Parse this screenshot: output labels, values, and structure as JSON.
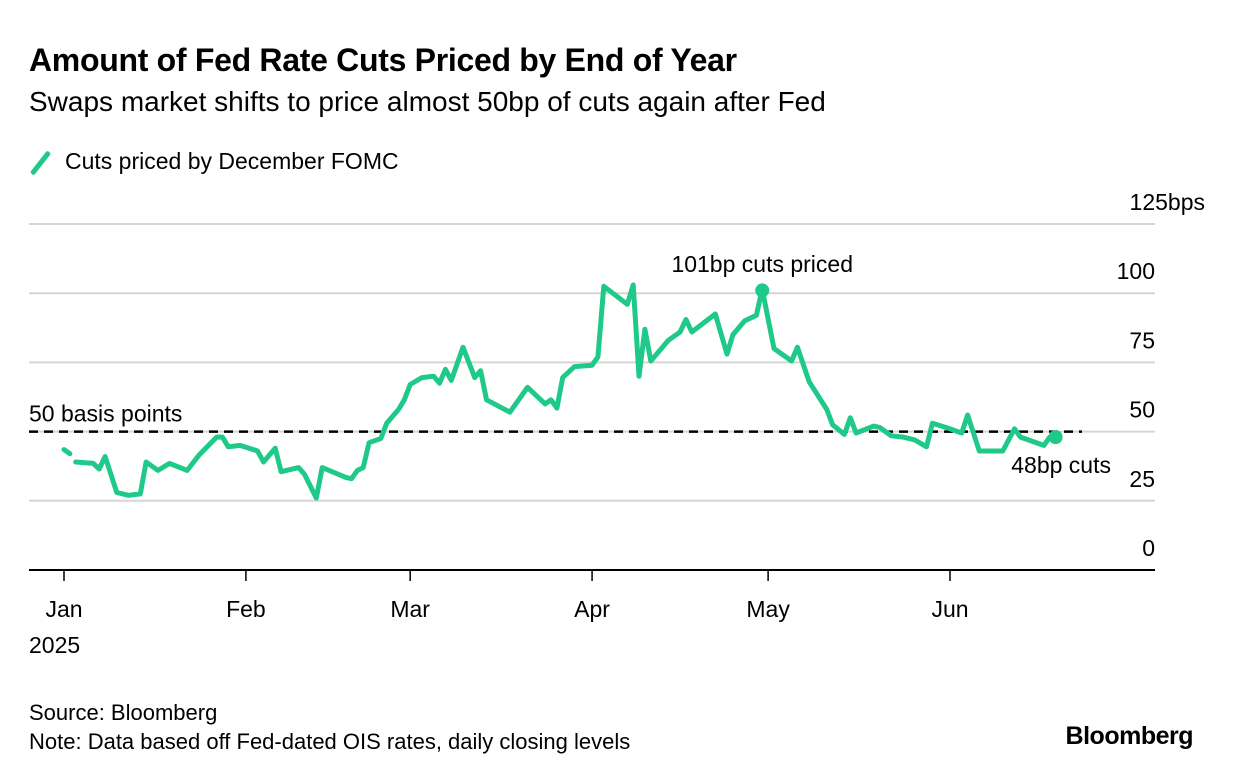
{
  "header": {
    "title": "Amount of Fed Rate Cuts Priced by End of Year",
    "subtitle": "Swaps market shifts to price almost 50bp of cuts again after Fed"
  },
  "legend": {
    "items": [
      {
        "label": "Cuts priced by December FOMC",
        "color": "#1fc98a"
      }
    ]
  },
  "footer": {
    "source": "Source: Bloomberg",
    "note": "Note: Data based off Fed-dated OIS rates, daily closing levels",
    "logo": "Bloomberg"
  },
  "chart_data": {
    "type": "line",
    "title": "Amount of Fed Rate Cuts Priced by End of Year",
    "subtitle": "Swaps market shifts to price almost 50bp of cuts again after Fed",
    "xlabel": "",
    "ylabel": "bps",
    "ylim": [
      0,
      125
    ],
    "yticks": [
      0,
      25,
      50,
      75,
      100,
      125
    ],
    "ytick_labels": [
      "0",
      "25",
      "50",
      "75",
      "100",
      "125bps"
    ],
    "xlim": [
      "2024-12-27",
      "2025-07-22"
    ],
    "xticks": [
      "2025-01-01",
      "2025-02-01",
      "2025-03-01",
      "2025-04-01",
      "2025-05-01",
      "2025-06-01"
    ],
    "xtick_labels": [
      "Jan",
      "Feb",
      "Mar",
      "Apr",
      "May",
      "Jun"
    ],
    "xtick_sublabel": "2025",
    "grid": true,
    "legend_position": "top-left",
    "reference_line": {
      "value": 50,
      "label": "50 basis points",
      "style": "dashed"
    },
    "annotations": [
      {
        "text": "101bp cuts priced",
        "date": "2025-04-30",
        "value": 101
      },
      {
        "text": "48bp cuts",
        "date": "2025-06-19",
        "value": 48
      }
    ],
    "series": [
      {
        "name": "Cuts priced by December FOMC",
        "color": "#1fc98a",
        "segments": [
          [
            [
              "2025-01-01",
              43.5
            ],
            [
              "2025-01-02",
              42
            ]
          ],
          [
            [
              "2025-01-03",
              39
            ],
            [
              "2025-01-06",
              38.5
            ],
            [
              "2025-01-07",
              36.5
            ],
            [
              "2025-01-08",
              41
            ],
            [
              "2025-01-10",
              28
            ],
            [
              "2025-01-12",
              27
            ],
            [
              "2025-01-14",
              27.5
            ],
            [
              "2025-01-15",
              39
            ],
            [
              "2025-01-17",
              36
            ],
            [
              "2025-01-19",
              38.5
            ],
            [
              "2025-01-22",
              36
            ],
            [
              "2025-01-24",
              41.5
            ],
            [
              "2025-01-27",
              48
            ],
            [
              "2025-01-28",
              48
            ],
            [
              "2025-01-29",
              44.5
            ],
            [
              "2025-01-31",
              45
            ],
            [
              "2025-02-03",
              43
            ],
            [
              "2025-02-04",
              39
            ],
            [
              "2025-02-06",
              44
            ],
            [
              "2025-02-07",
              35.5
            ],
            [
              "2025-02-10",
              37
            ],
            [
              "2025-02-11",
              34.5
            ],
            [
              "2025-02-13",
              26
            ],
            [
              "2025-02-14",
              37
            ],
            [
              "2025-02-18",
              33.5
            ],
            [
              "2025-02-19",
              33
            ],
            [
              "2025-02-20",
              36
            ],
            [
              "2025-02-21",
              37
            ],
            [
              "2025-02-22",
              46
            ],
            [
              "2025-02-24",
              47.5
            ],
            [
              "2025-02-25",
              53
            ],
            [
              "2025-02-27",
              58
            ],
            [
              "2025-02-28",
              61.5
            ],
            [
              "2025-03-01",
              67
            ],
            [
              "2025-03-03",
              69.5
            ],
            [
              "2025-03-05",
              70
            ],
            [
              "2025-03-06",
              67.5
            ],
            [
              "2025-03-07",
              72.5
            ],
            [
              "2025-03-08",
              68.5
            ],
            [
              "2025-03-10",
              80.5
            ],
            [
              "2025-03-12",
              69.5
            ],
            [
              "2025-03-13",
              72
            ],
            [
              "2025-03-14",
              61.5
            ],
            [
              "2025-03-18",
              57
            ],
            [
              "2025-03-21",
              66
            ],
            [
              "2025-03-24",
              60
            ],
            [
              "2025-03-25",
              61.5
            ],
            [
              "2025-03-26",
              58.5
            ],
            [
              "2025-03-27",
              69.5
            ],
            [
              "2025-03-29",
              73.5
            ],
            [
              "2025-04-01",
              74
            ],
            [
              "2025-04-02",
              77
            ],
            [
              "2025-04-03",
              102.5
            ],
            [
              "2025-04-07",
              96
            ],
            [
              "2025-04-08",
              103
            ],
            [
              "2025-04-09",
              70
            ],
            [
              "2025-04-10",
              87
            ],
            [
              "2025-04-11",
              75.5
            ],
            [
              "2025-04-14",
              83
            ],
            [
              "2025-04-16",
              86
            ],
            [
              "2025-04-17",
              90.5
            ],
            [
              "2025-04-18",
              86
            ],
            [
              "2025-04-22",
              92.5
            ],
            [
              "2025-04-24",
              78
            ],
            [
              "2025-04-25",
              85
            ],
            [
              "2025-04-27",
              90
            ],
            [
              "2025-04-29",
              92
            ],
            [
              "2025-04-30",
              101.5
            ],
            [
              "2025-05-02",
              80
            ],
            [
              "2025-05-05",
              75.5
            ],
            [
              "2025-05-06",
              80.5
            ],
            [
              "2025-05-08",
              68
            ],
            [
              "2025-05-11",
              58
            ],
            [
              "2025-05-12",
              52.5
            ],
            [
              "2025-05-14",
              49
            ],
            [
              "2025-05-15",
              55
            ],
            [
              "2025-05-16",
              49.5
            ],
            [
              "2025-05-19",
              52
            ],
            [
              "2025-05-20",
              51.5
            ],
            [
              "2025-05-22",
              48.5
            ],
            [
              "2025-05-24",
              48
            ],
            [
              "2025-05-26",
              47
            ],
            [
              "2025-05-28",
              44.5
            ],
            [
              "2025-05-29",
              53
            ],
            [
              "2025-06-01",
              51
            ],
            [
              "2025-06-03",
              49.5
            ],
            [
              "2025-06-04",
              56
            ],
            [
              "2025-06-06",
              43
            ],
            [
              "2025-06-10",
              43
            ],
            [
              "2025-06-12",
              51
            ],
            [
              "2025-06-13",
              48
            ],
            [
              "2025-06-17",
              45
            ],
            [
              "2025-06-18",
              48
            ]
          ]
        ]
      }
    ]
  }
}
